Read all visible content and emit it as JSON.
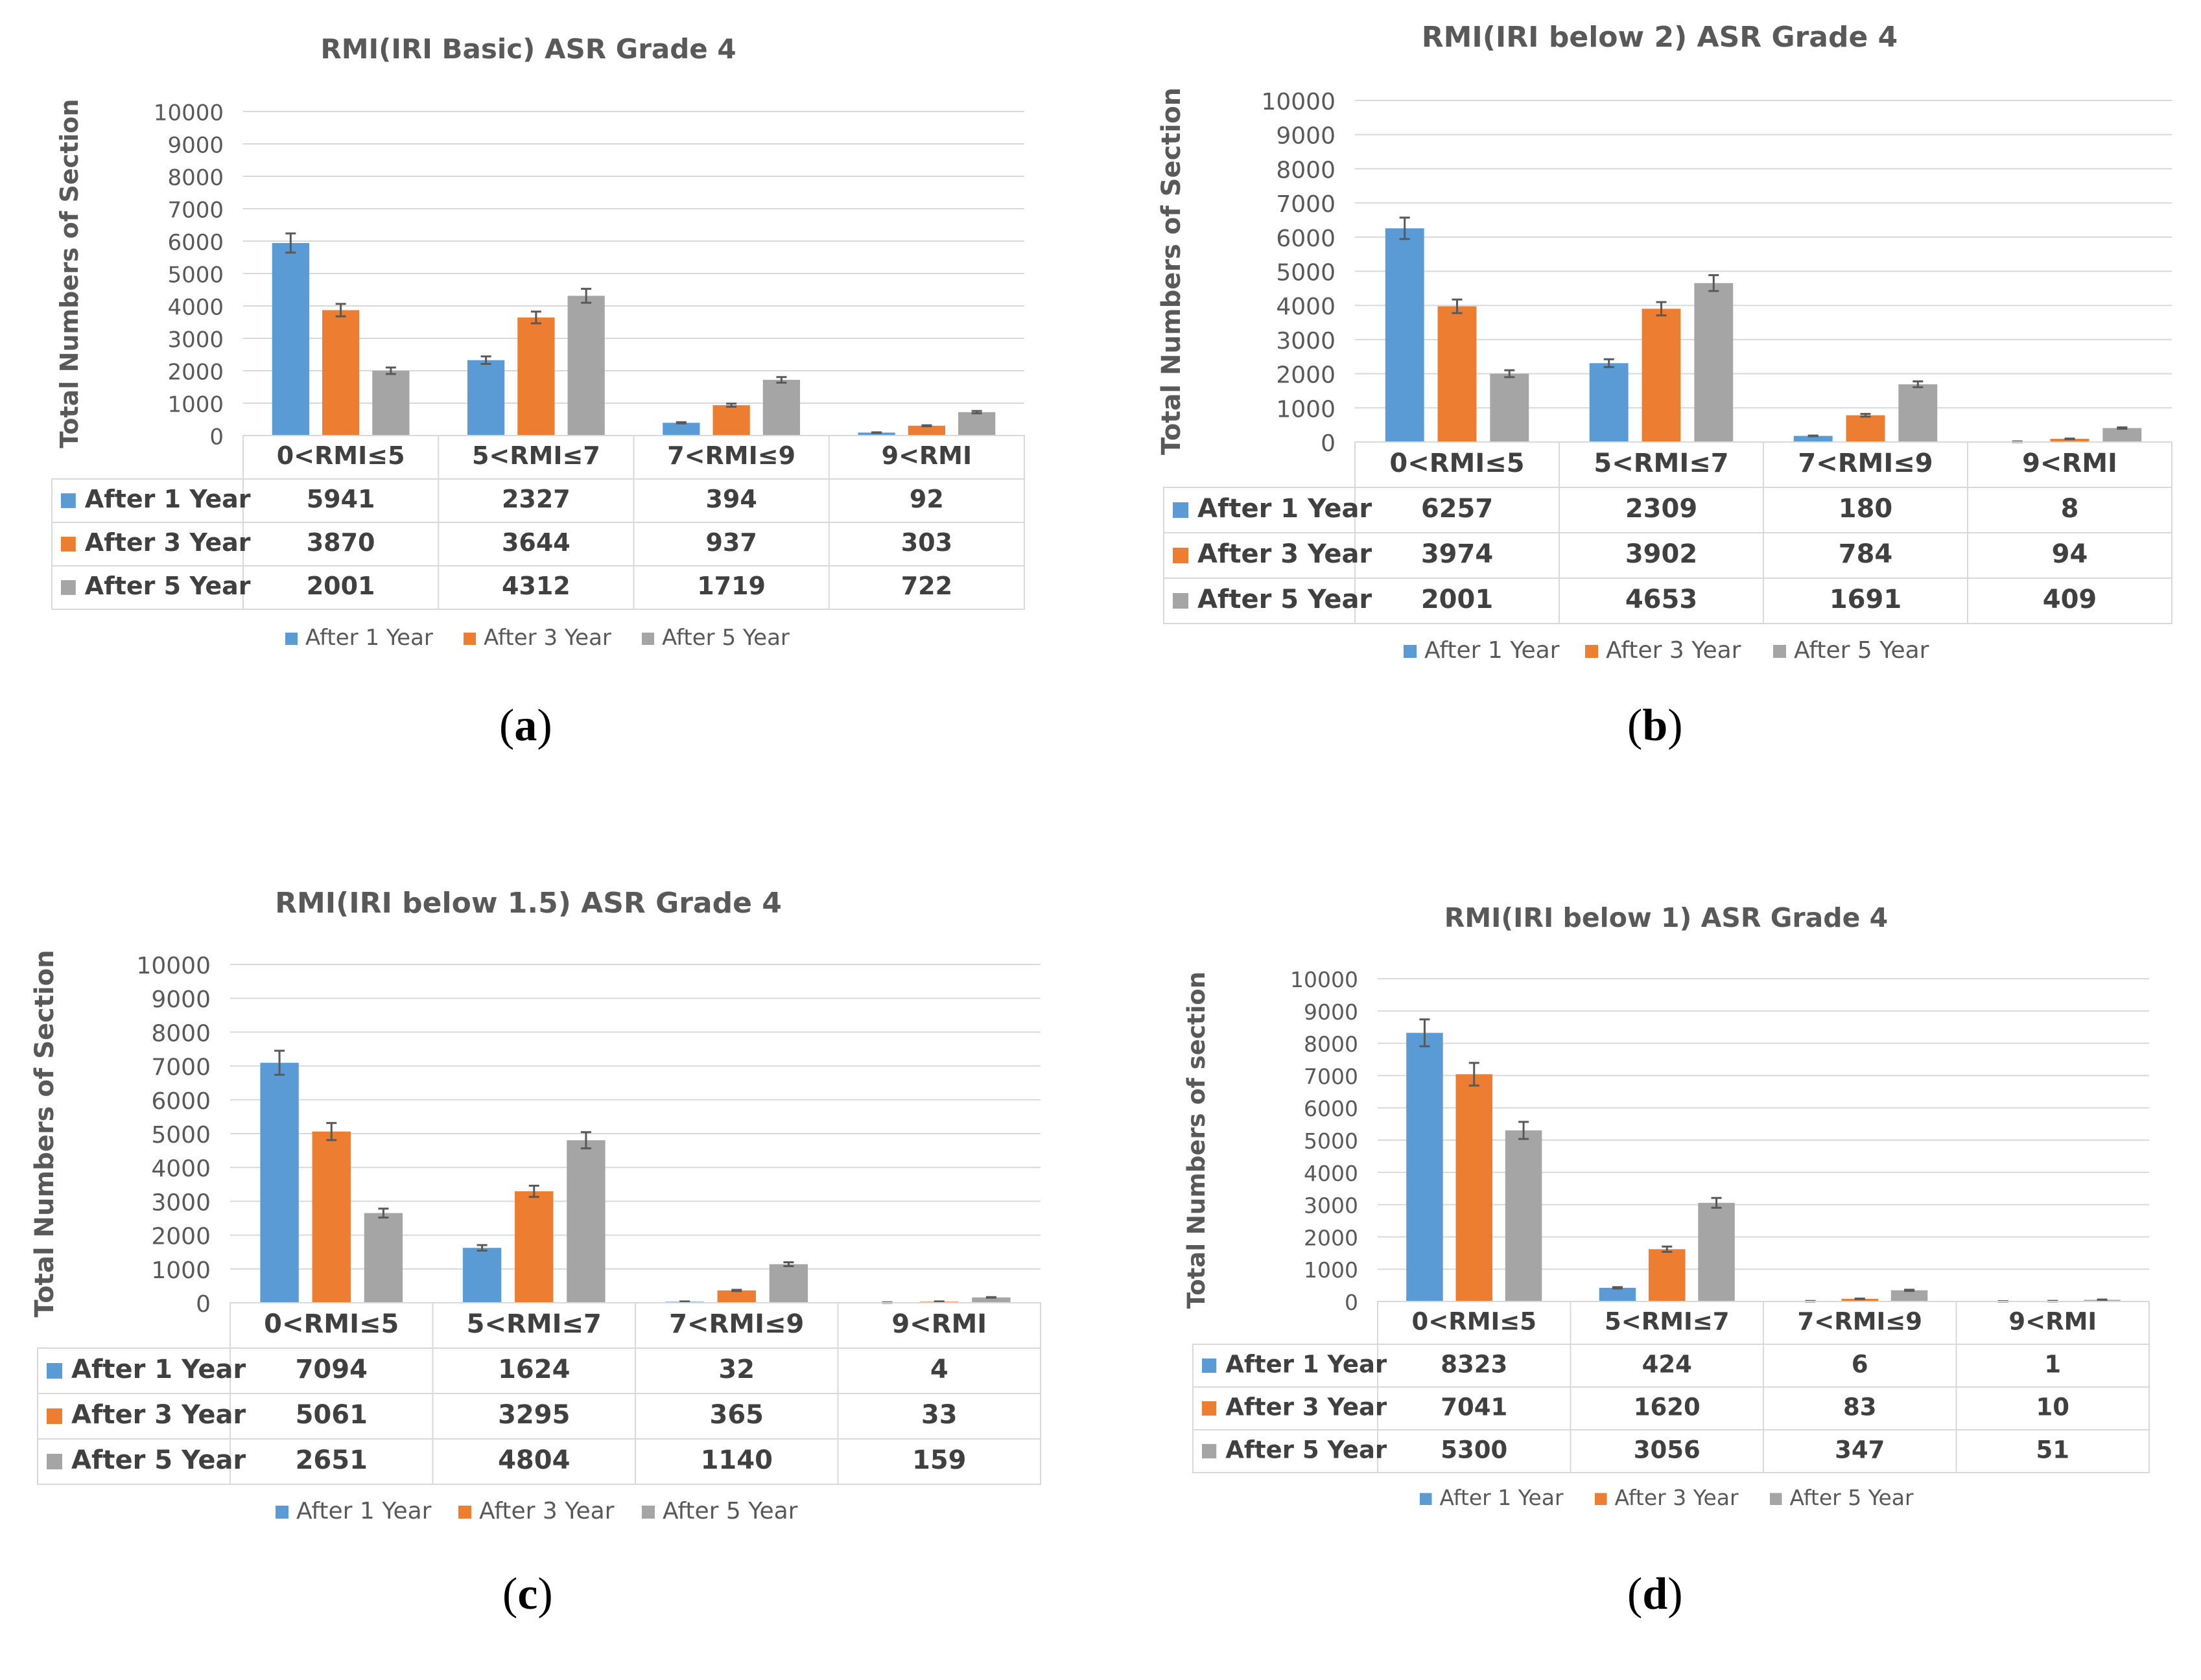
{
  "series_colors": [
    "#5b9bd5",
    "#ed7d31",
    "#a5a5a5"
  ],
  "chart_data": [
    {
      "type": "bar",
      "title": "RMI(IRI Basic) ASR Grade 4",
      "ylabel": "Total Numbers of Section",
      "ylim": [
        0,
        10000
      ],
      "yticks": [
        "10000",
        "9000",
        "8000",
        "7000",
        "6000",
        "5000",
        "4000",
        "3000",
        "2000",
        "1000",
        "0"
      ],
      "categories": [
        "0<RMI≤5",
        "5<RMI≤7",
        "7<RMI≤9",
        "9<RMI"
      ],
      "series": [
        {
          "name": "After 1 Year",
          "values": [
            5941,
            2327,
            394,
            92
          ]
        },
        {
          "name": "After 3 Year",
          "values": [
            3870,
            3644,
            937,
            303
          ]
        },
        {
          "name": "After 5 Year",
          "values": [
            2001,
            4312,
            1719,
            722
          ]
        }
      ],
      "caption": "a"
    },
    {
      "type": "bar",
      "title": "RMI(IRI below 2) ASR Grade 4",
      "ylabel": "Total Numbers of Section",
      "ylim": [
        0,
        10000
      ],
      "yticks": [
        "10000",
        "9000",
        "8000",
        "7000",
        "6000",
        "5000",
        "4000",
        "3000",
        "2000",
        "1000",
        "0"
      ],
      "categories": [
        "0<RMI≤5",
        "5<RMI≤7",
        "7<RMI≤9",
        "9<RMI"
      ],
      "series": [
        {
          "name": "After 1 Year",
          "values": [
            6257,
            2309,
            180,
            8
          ]
        },
        {
          "name": "After 3 Year",
          "values": [
            3974,
            3902,
            784,
            94
          ]
        },
        {
          "name": "After 5 Year",
          "values": [
            2001,
            4653,
            1691,
            409
          ]
        }
      ],
      "caption": "b"
    },
    {
      "type": "bar",
      "title": "RMI(IRI below 1.5) ASR Grade 4",
      "ylabel": "Total Numbers of Section",
      "ylim": [
        0,
        10000
      ],
      "yticks": [
        "10000",
        "9000",
        "8000",
        "7000",
        "6000",
        "5000",
        "4000",
        "3000",
        "2000",
        "1000",
        "0"
      ],
      "categories": [
        "0<RMI≤5",
        "5<RMI≤7",
        "7<RMI≤9",
        "9<RMI"
      ],
      "series": [
        {
          "name": "After 1 Year",
          "values": [
            7094,
            1624,
            32,
            4
          ]
        },
        {
          "name": "After 3 Year",
          "values": [
            5061,
            3295,
            365,
            33
          ]
        },
        {
          "name": "After 5 Year",
          "values": [
            2651,
            4804,
            1140,
            159
          ]
        }
      ],
      "caption": "c"
    },
    {
      "type": "bar",
      "title": "RMI(IRI below 1) ASR Grade 4",
      "ylabel": "Total Numbers of section",
      "ylim": [
        0,
        10000
      ],
      "yticks": [
        "10000",
        "9000",
        "8000",
        "7000",
        "6000",
        "5000",
        "4000",
        "3000",
        "2000",
        "1000",
        "0"
      ],
      "categories": [
        "0<RMI≤5",
        "5<RMI≤7",
        "7<RMI≤9",
        "9<RMI"
      ],
      "series": [
        {
          "name": "After 1 Year",
          "values": [
            8323,
            424,
            6,
            1
          ]
        },
        {
          "name": "After 3 Year",
          "values": [
            7041,
            1620,
            83,
            10
          ]
        },
        {
          "name": "After 5 Year",
          "values": [
            5300,
            3056,
            347,
            51
          ]
        }
      ],
      "caption": "d"
    }
  ]
}
